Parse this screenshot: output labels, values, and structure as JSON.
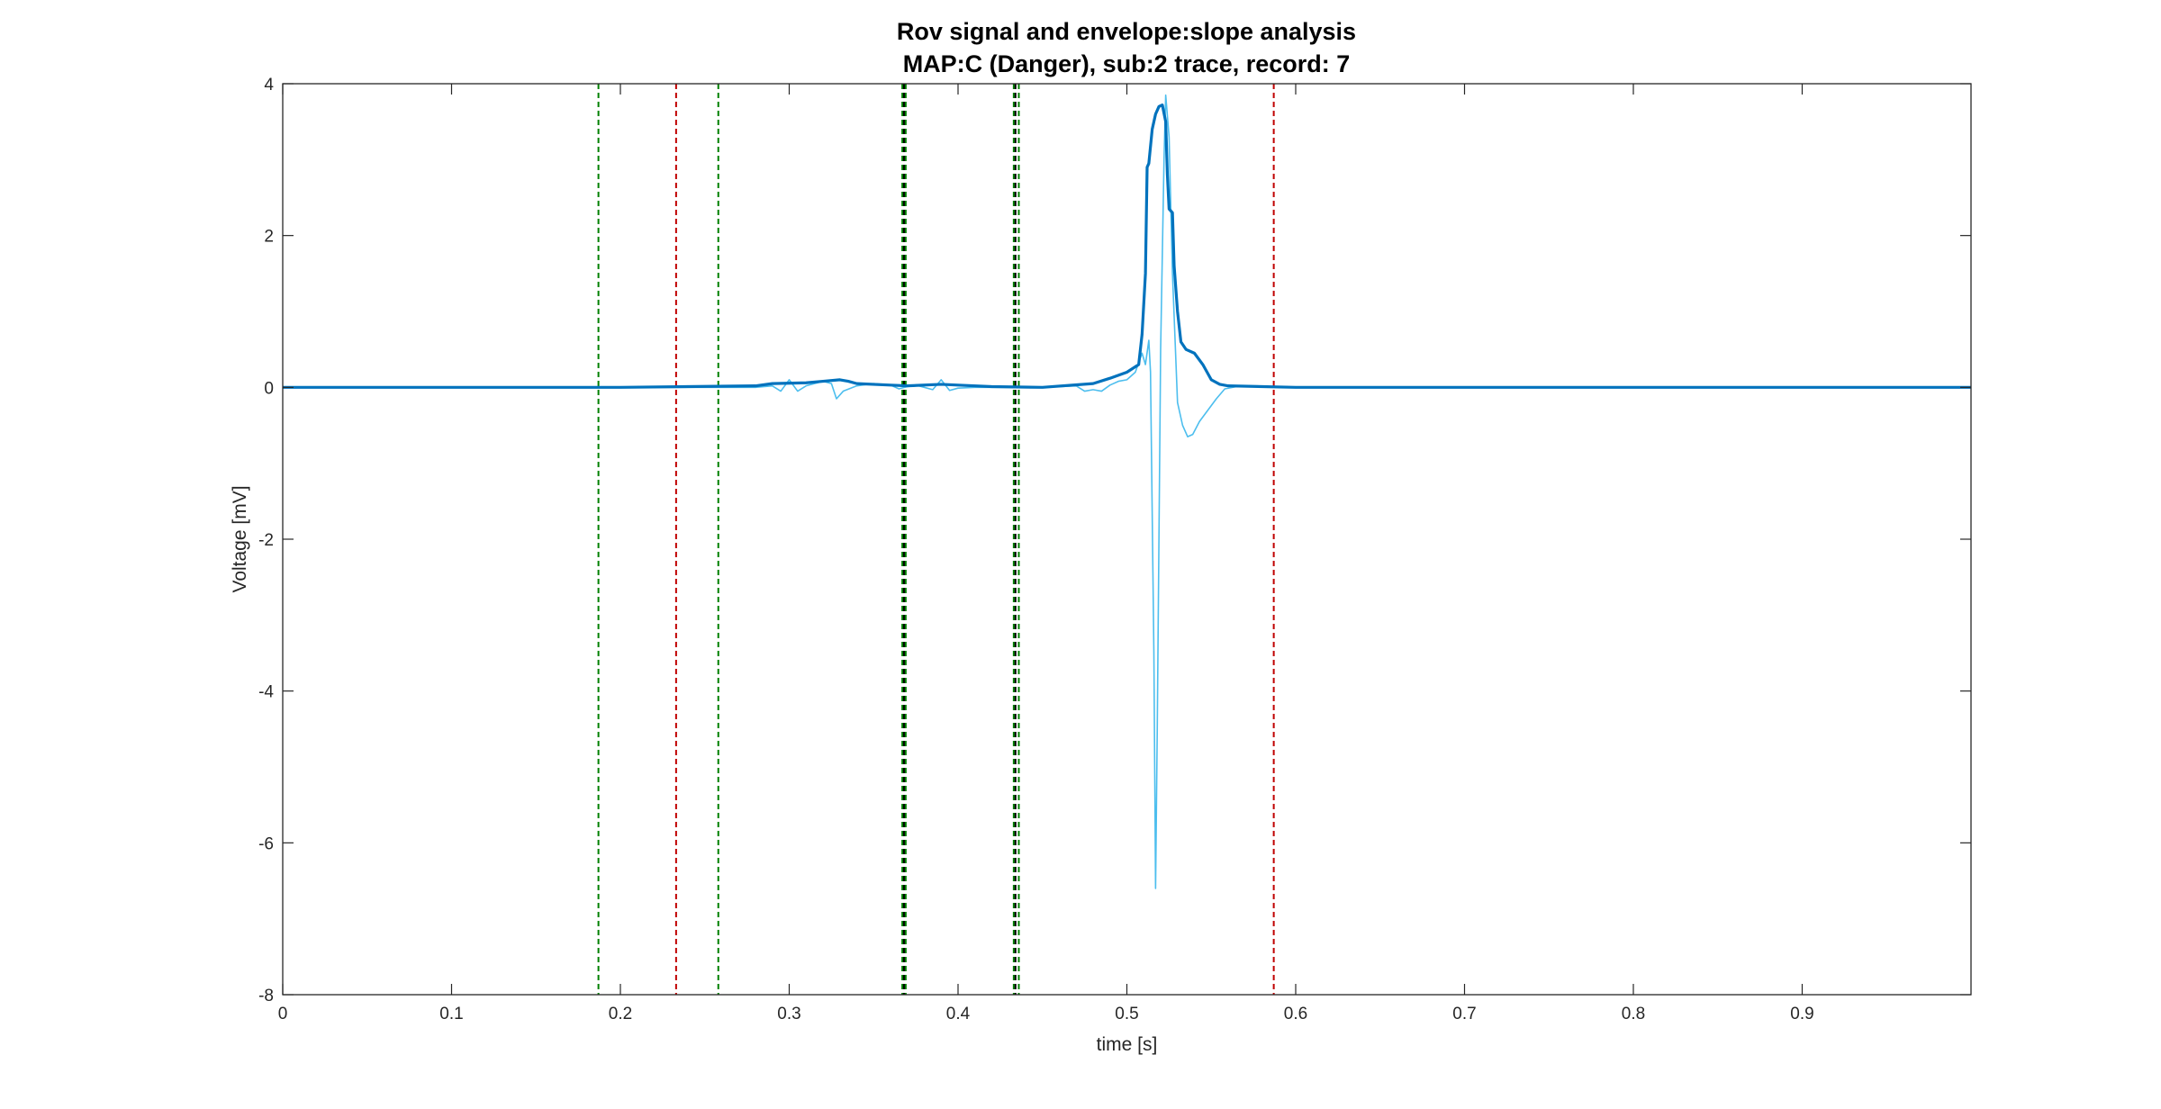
{
  "chart_data": {
    "type": "line",
    "title": "Rov signal and envelope:slope analysis",
    "subtitle": "MAP:C (Danger), sub:2 trace, record: 7",
    "xlabel": "time [s]",
    "ylabel": "Voltage [mV]",
    "xlim": [
      0,
      1
    ],
    "ylim": [
      -8,
      4
    ],
    "xticks": [
      0,
      0.1,
      0.2,
      0.3,
      0.4,
      0.5,
      0.6,
      0.7,
      0.8,
      0.9
    ],
    "xtick_labels": [
      "0",
      "0.1",
      "0.2",
      "0.3",
      "0.4",
      "0.5",
      "0.6",
      "0.7",
      "0.8",
      "0.9"
    ],
    "yticks": [
      -8,
      -6,
      -4,
      -2,
      0,
      2,
      4
    ],
    "ytick_labels": [
      "-8",
      "-6",
      "-4",
      "-2",
      "0",
      "2",
      "4"
    ],
    "grid": false,
    "box": true,
    "series": [
      {
        "role": "signal",
        "color": "#4dbeee",
        "points": [
          [
            0,
            0
          ],
          [
            0.1,
            0
          ],
          [
            0.2,
            0
          ],
          [
            0.28,
            0
          ],
          [
            0.29,
            0.02
          ],
          [
            0.295,
            -0.05
          ],
          [
            0.3,
            0.1
          ],
          [
            0.305,
            -0.05
          ],
          [
            0.31,
            0.02
          ],
          [
            0.315,
            0.05
          ],
          [
            0.32,
            0.08
          ],
          [
            0.325,
            0.05
          ],
          [
            0.328,
            -0.15
          ],
          [
            0.332,
            -0.05
          ],
          [
            0.34,
            0.02
          ],
          [
            0.35,
            0.05
          ],
          [
            0.36,
            0.03
          ],
          [
            0.365,
            -0.02
          ],
          [
            0.37,
            0.01
          ],
          [
            0.375,
            0.03
          ],
          [
            0.385,
            -0.03
          ],
          [
            0.39,
            0.1
          ],
          [
            0.395,
            -0.04
          ],
          [
            0.4,
            -0.01
          ],
          [
            0.41,
            0
          ],
          [
            0.42,
            0
          ],
          [
            0.45,
            0
          ],
          [
            0.47,
            0.02
          ],
          [
            0.475,
            -0.05
          ],
          [
            0.48,
            -0.03
          ],
          [
            0.485,
            -0.05
          ],
          [
            0.49,
            0.03
          ],
          [
            0.495,
            0.08
          ],
          [
            0.5,
            0.1
          ],
          [
            0.505,
            0.2
          ],
          [
            0.509,
            0.45
          ],
          [
            0.511,
            0.3
          ],
          [
            0.513,
            0.62
          ],
          [
            0.514,
            0.2
          ],
          [
            0.516,
            -3.5
          ],
          [
            0.517,
            -6.6
          ],
          [
            0.518,
            -4.5
          ],
          [
            0.52,
            0.5
          ],
          [
            0.522,
            3.0
          ],
          [
            0.523,
            3.85
          ],
          [
            0.525,
            3.3
          ],
          [
            0.527,
            1.5
          ],
          [
            0.53,
            -0.2
          ],
          [
            0.533,
            -0.5
          ],
          [
            0.536,
            -0.65
          ],
          [
            0.539,
            -0.62
          ],
          [
            0.543,
            -0.45
          ],
          [
            0.548,
            -0.3
          ],
          [
            0.553,
            -0.15
          ],
          [
            0.558,
            -0.02
          ],
          [
            0.565,
            0.01
          ],
          [
            0.6,
            0
          ],
          [
            0.7,
            0
          ],
          [
            0.8,
            0
          ],
          [
            0.9,
            0
          ],
          [
            1,
            0
          ]
        ]
      },
      {
        "role": "envelope",
        "color": "#0072bd",
        "points": [
          [
            0,
            0
          ],
          [
            0.2,
            0
          ],
          [
            0.28,
            0.02
          ],
          [
            0.29,
            0.05
          ],
          [
            0.31,
            0.06
          ],
          [
            0.32,
            0.08
          ],
          [
            0.33,
            0.1
          ],
          [
            0.335,
            0.08
          ],
          [
            0.34,
            0.05
          ],
          [
            0.36,
            0.03
          ],
          [
            0.37,
            0.02
          ],
          [
            0.39,
            0.04
          ],
          [
            0.4,
            0.03
          ],
          [
            0.42,
            0.01
          ],
          [
            0.45,
            0
          ],
          [
            0.48,
            0.05
          ],
          [
            0.49,
            0.12
          ],
          [
            0.5,
            0.2
          ],
          [
            0.507,
            0.3
          ],
          [
            0.509,
            0.7
          ],
          [
            0.511,
            1.5
          ],
          [
            0.512,
            2.9
          ],
          [
            0.513,
            2.95
          ],
          [
            0.515,
            3.4
          ],
          [
            0.517,
            3.6
          ],
          [
            0.519,
            3.7
          ],
          [
            0.521,
            3.72
          ],
          [
            0.523,
            3.5
          ],
          [
            0.524,
            2.8
          ],
          [
            0.525,
            2.35
          ],
          [
            0.527,
            2.3
          ],
          [
            0.528,
            1.6
          ],
          [
            0.53,
            1.0
          ],
          [
            0.532,
            0.6
          ],
          [
            0.535,
            0.5
          ],
          [
            0.54,
            0.45
          ],
          [
            0.545,
            0.3
          ],
          [
            0.55,
            0.1
          ],
          [
            0.555,
            0.04
          ],
          [
            0.56,
            0.02
          ],
          [
            0.6,
            0
          ],
          [
            0.7,
            0
          ],
          [
            0.8,
            0
          ],
          [
            0.9,
            0
          ],
          [
            1,
            0
          ]
        ]
      }
    ],
    "vertical_markers": [
      {
        "x": 0.187,
        "color": "#008000",
        "style": "dashed"
      },
      {
        "x": 0.233,
        "color": "#c00000",
        "style": "dashed"
      },
      {
        "x": 0.258,
        "color": "#008000",
        "style": "dashed"
      },
      {
        "x": 0.367,
        "color": "#008000",
        "style": "dashed"
      },
      {
        "x": 0.368,
        "color": "#000000",
        "style": "dashed"
      },
      {
        "x": 0.369,
        "color": "#008000",
        "style": "dashed"
      },
      {
        "x": 0.433,
        "color": "#008000",
        "style": "dashed"
      },
      {
        "x": 0.434,
        "color": "#000000",
        "style": "dashed"
      },
      {
        "x": 0.436,
        "color": "#008000",
        "style": "dashed"
      },
      {
        "x": 0.587,
        "color": "#c00000",
        "style": "dashed"
      }
    ]
  }
}
